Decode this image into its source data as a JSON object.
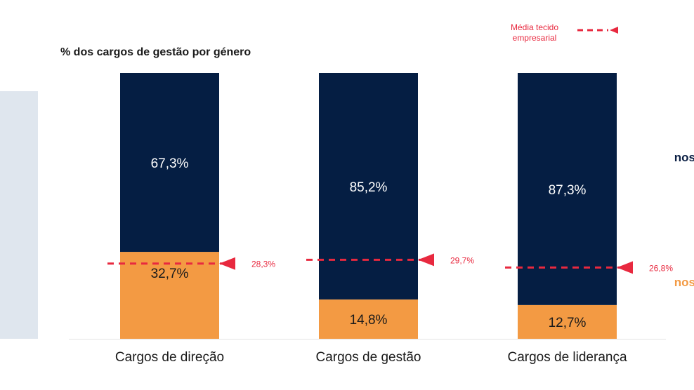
{
  "legend": {
    "men_label": "nos",
    "women_label": "nos",
    "reference_label": "Média tecido empresarial"
  },
  "chart_data": {
    "type": "bar",
    "stacked": true,
    "title": "% dos cargos de gestão por género",
    "categories": [
      "Cargos de direção",
      "Cargos de gestão",
      "Cargos de liderança"
    ],
    "series": [
      {
        "name": "",
        "color": "#f39a43",
        "text_color": "#1a1a1a",
        "values": [
          32.7,
          14.8,
          12.7
        ],
        "labels": [
          "32,7%",
          "14,8%",
          "12,7%"
        ]
      },
      {
        "name": "",
        "color": "#051e43",
        "text_color": "#ffffff",
        "values": [
          67.3,
          85.2,
          87.3
        ],
        "labels": [
          "67,3%",
          "85,2%",
          "87,3%"
        ]
      }
    ],
    "reference": {
      "name": "Média tecido empresarial",
      "color": "#e8293f",
      "values": [
        28.3,
        29.7,
        26.8
      ],
      "labels": [
        "28,3%",
        "29,7%",
        "26,8%"
      ]
    },
    "ylim": [
      0,
      100
    ],
    "grid": false,
    "xlabel": "",
    "ylabel": ""
  }
}
